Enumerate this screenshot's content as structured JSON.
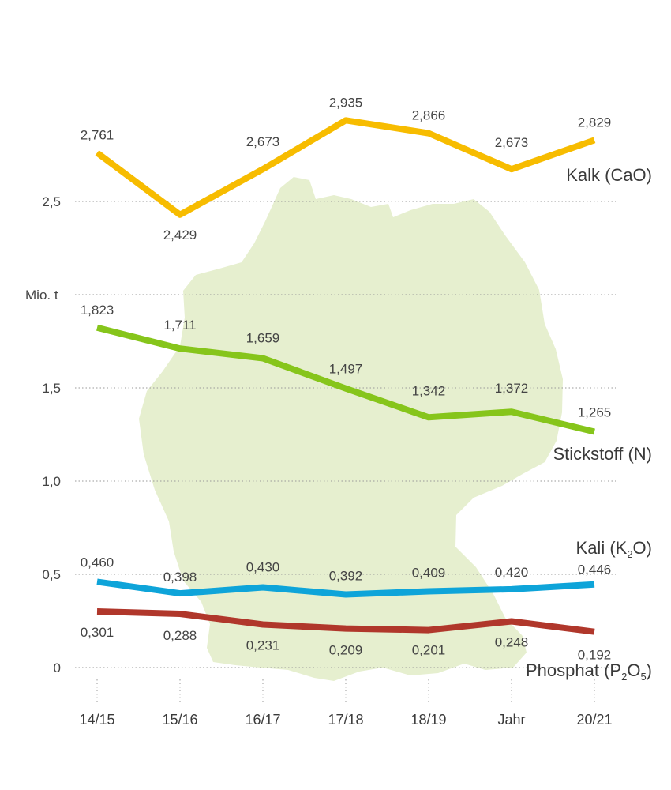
{
  "colors": {
    "map": "#e6efcf",
    "grid": "#999999",
    "kalk": "#f7bc00",
    "stickstoff": "#86c51b",
    "kali": "#0ea4d9",
    "phosphat": "#b0372b"
  },
  "chart_data": {
    "type": "line",
    "categories": [
      "14/15",
      "15/16",
      "16/17",
      "17/18",
      "18/19",
      "Jahr",
      "20/21"
    ],
    "ylabel": "Mio. t",
    "y_ticks": [
      "0",
      "0,5",
      "1,0",
      "1,5",
      "2,5"
    ],
    "grid": true,
    "series": [
      {
        "key": "kalk",
        "name": "Kalk (CaO)",
        "values": [
          2.761,
          2.429,
          2.673,
          2.935,
          2.866,
          2.673,
          2.829
        ],
        "labels": [
          "2,761",
          "2,429",
          "2,673",
          "2,935",
          "2,866",
          "2,673",
          "2,829"
        ]
      },
      {
        "key": "stickstoff",
        "name": "Stickstoff (N)",
        "values": [
          1.823,
          1.711,
          1.659,
          1.497,
          1.342,
          1.372,
          1.265
        ],
        "labels": [
          "1,823",
          "1,711",
          "1,659",
          "1,497",
          "1,342",
          "1,372",
          "1,265"
        ]
      },
      {
        "key": "kali",
        "name_main": "Kali (K",
        "name_sub": "2",
        "name_tail": "O)",
        "values": [
          0.46,
          0.398,
          0.43,
          0.392,
          0.409,
          0.42,
          0.446
        ],
        "labels": [
          "0,460",
          "0,398",
          "0,430",
          "0,392",
          "0,409",
          "0,420",
          "0,446"
        ]
      },
      {
        "key": "phosphat",
        "name_main": "Phosphat (P",
        "name_sub": "2",
        "name_mid": "O",
        "name_sub2": "5",
        "name_tail": ")",
        "values": [
          0.301,
          0.288,
          0.231,
          0.209,
          0.201,
          0.248,
          0.192
        ],
        "labels": [
          "0,301",
          "0,288",
          "0,231",
          "0,209",
          "0,201",
          "0,248",
          "0,192"
        ]
      }
    ]
  }
}
